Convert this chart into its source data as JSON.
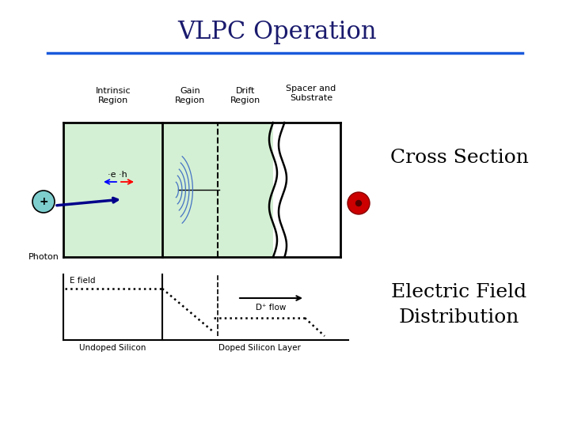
{
  "title": "VLPC Operation",
  "title_color": "#1a1a6e",
  "title_fontsize": 22,
  "bg_color": "#ffffff",
  "blue_line_color": "#1a5adc",
  "region_labels": [
    "Intrinsic\nRegion",
    "Gain\nRegion",
    "Drift\nRegion",
    "Spacer and\nSubstrate"
  ],
  "green_color": "#d4f0d4",
  "photon_label": "Photon",
  "efield_label": "E field",
  "dplus_label": "D⁺ flow",
  "undoped_label": "Undoped Silicon",
  "doped_label": "Doped Silicon Layer",
  "cross_section_text": "Cross Section",
  "efield_dist_text": "Electric Field\nDistribution"
}
